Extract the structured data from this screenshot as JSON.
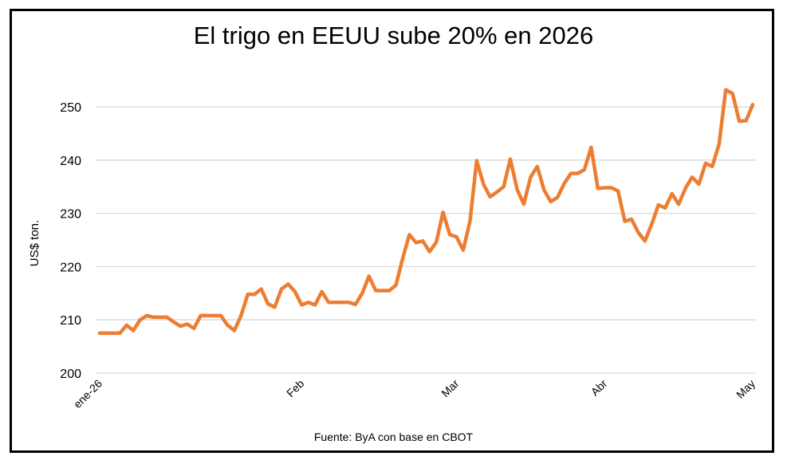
{
  "chart_data": {
    "type": "line",
    "title": "El trigo en EEUU sube 20% en 2026",
    "source": "Fuente: ByA con base en CBOT",
    "ylabel": "US$ ton.",
    "xlabel": "",
    "ylim": [
      200,
      250
    ],
    "yticks": [
      200,
      210,
      220,
      230,
      240,
      250
    ],
    "grid": true,
    "line_color": "#ED7D31",
    "grid_color": "#D9D9D9",
    "x_tick_labels": [
      {
        "label": "ene-26",
        "index": 0
      },
      {
        "label": "Feb",
        "index": 30
      },
      {
        "label": "Mar",
        "index": 53
      },
      {
        "label": "Abr",
        "index": 75
      },
      {
        "label": "May",
        "index": 97
      }
    ],
    "n_points": 98,
    "values": [
      207.5,
      207.5,
      207.5,
      207.5,
      209.0,
      208.0,
      210.0,
      210.8,
      210.5,
      210.5,
      210.5,
      209.6,
      208.8,
      209.2,
      208.4,
      210.8,
      210.8,
      210.8,
      210.8,
      209.0,
      208.0,
      210.8,
      214.8,
      214.8,
      215.8,
      213.0,
      212.4,
      215.8,
      216.7,
      215.3,
      212.8,
      213.3,
      212.8,
      215.3,
      213.3,
      213.3,
      213.3,
      213.3,
      212.9,
      215.0,
      218.2,
      215.5,
      215.5,
      215.5,
      216.5,
      221.5,
      226.0,
      224.5,
      224.8,
      222.8,
      224.6,
      230.2,
      226.0,
      225.6,
      223.1,
      228.5,
      239.9,
      235.5,
      233.1,
      234.0,
      235.0,
      240.2,
      234.5,
      231.7,
      236.8,
      238.8,
      234.4,
      232.2,
      233.0,
      235.6,
      237.5,
      237.5,
      238.2,
      242.4,
      234.7,
      234.8,
      234.8,
      234.2,
      228.5,
      228.9,
      226.4,
      224.8,
      228.0,
      231.6,
      231.0,
      233.7,
      231.7,
      234.7,
      236.8,
      235.5,
      239.4,
      238.8,
      243.0,
      253.2,
      252.5,
      247.3,
      247.4,
      250.4
    ]
  }
}
